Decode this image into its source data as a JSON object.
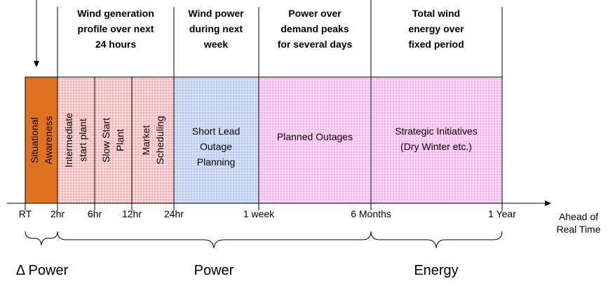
{
  "headers": [
    {
      "lines": [
        "Wind generation",
        "profile  over next",
        "24 hours"
      ]
    },
    {
      "lines": [
        "Wind power",
        "during next",
        "week"
      ]
    },
    {
      "lines": [
        "Power over",
        "demand peaks",
        "for several days"
      ]
    },
    {
      "lines": [
        "Total wind",
        "energy over",
        "fixed period"
      ]
    }
  ],
  "regions": [
    {
      "lines": [
        "Situational",
        "Awareness"
      ],
      "vertical": true
    },
    {
      "lines": [
        "Intermediate",
        "start plant"
      ],
      "vertical": true
    },
    {
      "lines": [
        "Slow Start",
        "Plant"
      ],
      "vertical": true
    },
    {
      "lines": [
        "Market",
        "Scheduling"
      ],
      "vertical": true
    },
    {
      "lines": [
        "Short Lead",
        "Outage",
        "Planning"
      ],
      "vertical": false
    },
    {
      "lines": [
        "Planned Outages"
      ],
      "vertical": false
    },
    {
      "lines": [
        "Strategic Initiatives",
        "(Dry Winter etc.)"
      ],
      "vertical": false
    }
  ],
  "ticks": [
    "RT",
    "2hr",
    "6hr",
    "12hr",
    "24hr",
    "1 week",
    "6 Months",
    "1 Year"
  ],
  "axis_label": [
    "Ahead of",
    "Real Time"
  ],
  "groups": [
    "Δ Power",
    "Power",
    "Energy"
  ]
}
